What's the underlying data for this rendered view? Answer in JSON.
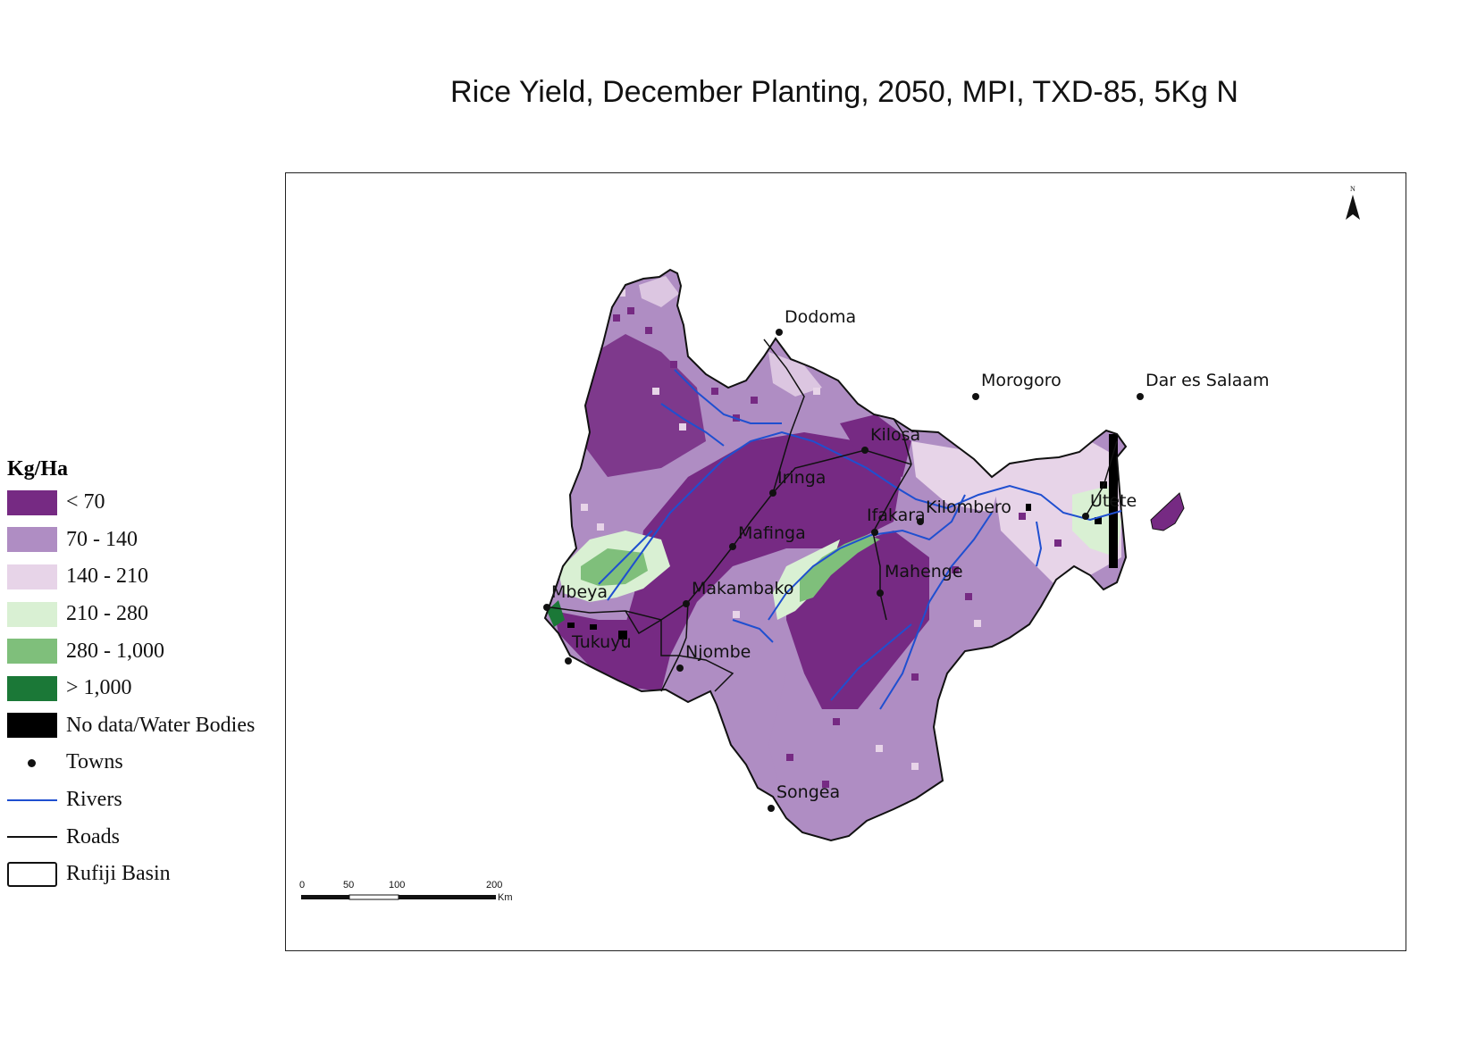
{
  "title": "Rice Yield, December Planting, 2050, MPI, TXD-85, 5Kg N",
  "legend": {
    "title": "Kg/Ha",
    "classes": [
      {
        "label": "< 70",
        "color": "#762a83"
      },
      {
        "label": "70 - 140",
        "color": "#af8dc3"
      },
      {
        "label": "140 - 210",
        "color": "#e7d4e8"
      },
      {
        "label": "210 - 280",
        "color": "#d9f0d3"
      },
      {
        "label": "280 - 1,000",
        "color": "#7fbf7b"
      },
      {
        "label": "> 1,000",
        "color": "#1b7837"
      },
      {
        "label": "No data/Water Bodies",
        "color": "#000000"
      }
    ],
    "symbols": {
      "towns": "Towns",
      "rivers": "Rivers",
      "roads": "Roads",
      "basin": "Rufiji Basin"
    }
  },
  "towns": {
    "dodoma": "Dodoma",
    "morogoro": "Morogoro",
    "dar": "Dar es Salaam",
    "kilosa": "Kilosa",
    "iringa": "Iringa",
    "utete": "Utete",
    "ifakara": "Ifakara",
    "kilombero": "Kilombero",
    "mafinga": "Mafinga",
    "mahenge": "Mahenge",
    "mbeya": "Mbeya",
    "makambako": "Makambako",
    "tukuyu": "Tukuyu",
    "njombe": "Njombe",
    "songea": "Songea"
  },
  "north_arrow": "N",
  "scale_bar": {
    "ticks": [
      "0",
      "50",
      "100",
      "200"
    ],
    "unit": "Km"
  },
  "colors": {
    "river": "#1f4fd0",
    "road": "#111111",
    "basin_outline": "#111111"
  }
}
